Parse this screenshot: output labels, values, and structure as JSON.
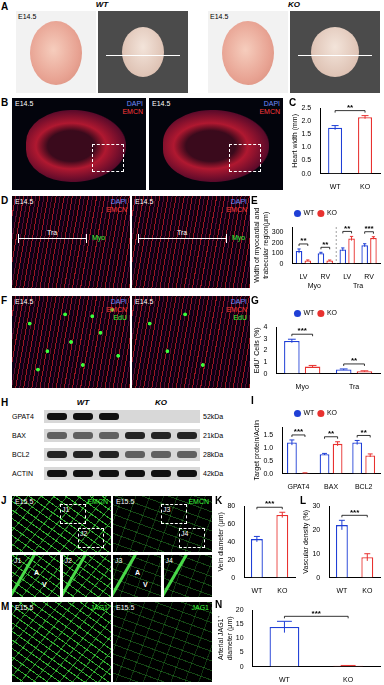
{
  "image_panels": [
    {
      "panel": "A",
      "kind": "embryo",
      "columns": [
        "WT",
        "KO"
      ],
      "stage": "E14.5"
    },
    {
      "panel": "B",
      "kind": "heart",
      "stage": "E14.5",
      "stains": [
        {
          "name": "DAPI",
          "color": "#6f8cff"
        },
        {
          "name": "EMCN",
          "color": "#ff3b3b"
        }
      ]
    },
    {
      "panel": "D",
      "kind": "zoom",
      "stage": "E14.5",
      "stains": [
        {
          "name": "DAPI",
          "color": "#6f8cff"
        },
        {
          "name": "EMCN",
          "color": "#ff3b3b"
        }
      ],
      "regions": [
        {
          "name": "Tra",
          "color": "#ffffff"
        },
        {
          "name": "Myo",
          "color": "#3cff3c"
        }
      ]
    },
    {
      "panel": "F",
      "kind": "zoom",
      "stage": "E14.5",
      "stains": [
        {
          "name": "DAPI",
          "color": "#6f8cff"
        },
        {
          "name": "EMCN",
          "color": "#ff3b3b"
        },
        {
          "name": "EdU",
          "color": "#3cff3c"
        }
      ]
    },
    {
      "panel": "J",
      "kind": "vessels",
      "stage": "E15.5",
      "stains": [
        {
          "name": "EMCN",
          "color": "#3cff3c"
        }
      ],
      "insets": [
        {
          "label": "J1",
          "marks": [
            "A",
            "V"
          ]
        },
        {
          "label": "J2"
        },
        {
          "label": "J3",
          "marks": [
            "A",
            "V"
          ]
        },
        {
          "label": "J4"
        }
      ]
    },
    {
      "panel": "M",
      "kind": "vessels",
      "stage": "E15.5",
      "stains": [
        {
          "name": "JAG1",
          "color": "#3cff3c"
        }
      ]
    }
  ],
  "blot": {
    "panel": "H",
    "columns": [
      "WT",
      "KO"
    ],
    "lanes_per_column": 3,
    "rows": [
      {
        "protein": "GPAT4",
        "size": "52kDa",
        "bands": [
          1,
          1,
          1,
          0,
          0,
          0
        ]
      },
      {
        "protein": "BAX",
        "size": "21kDa",
        "bands": [
          0.6,
          0.6,
          0.6,
          0.9,
          0.9,
          0.9
        ]
      },
      {
        "protein": "BCL2",
        "size": "28kDa",
        "bands": [
          0.9,
          0.9,
          0.9,
          0.6,
          0.6,
          0.6
        ]
      },
      {
        "protein": "ACTIN",
        "size": "42kDa",
        "bands": [
          1,
          1,
          1,
          1,
          1,
          1
        ]
      }
    ]
  },
  "chart_data": [
    {
      "panel": "C",
      "type": "bar",
      "y_label": "Heart width (mm)",
      "categories": [
        "WT",
        "KO"
      ],
      "values": [
        1.75,
        2.15
      ],
      "errors": [
        0.08,
        0.06
      ],
      "colors": [
        "#1f3fd6",
        "#e8312f"
      ],
      "ylim": [
        0,
        2.5
      ],
      "yticks": [
        {
          "value": 0,
          "label": "0.0"
        },
        0.5,
        {
          "value": 1,
          "label": "1.0"
        },
        1.5,
        {
          "value": 2,
          "label": "2.0"
        },
        2.5
      ],
      "significance": "**",
      "grid": false
    },
    {
      "panel": "E",
      "type": "bar",
      "y_label": [
        "Width of myocardial and",
        "trabecular region(μm)"
      ],
      "categories": [
        "LV",
        "RV",
        "LV",
        "RV"
      ],
      "x_groups": [
        "Myo",
        "Tra"
      ],
      "series": [
        {
          "name": "WT",
          "color": "#1f3fd6",
          "values": [
            120,
            100,
            135,
            175
          ],
          "errors": [
            20,
            8,
            15,
            15
          ]
        },
        {
          "name": "KO",
          "color": "#e8312f",
          "values": [
            30,
            30,
            240,
            245
          ],
          "errors": [
            5,
            4,
            20,
            12
          ]
        }
      ],
      "ylim": [
        0,
        350
      ],
      "yticks": [
        0,
        100,
        200,
        300
      ],
      "significance": [
        "**",
        "**",
        "**",
        "***"
      ],
      "legend": "top",
      "grid": false
    },
    {
      "panel": "G",
      "type": "bar",
      "y_label": "EdU⁺ Cells (%)",
      "categories": [
        "Myo",
        "Tra"
      ],
      "series": [
        {
          "name": "WT",
          "color": "#1f3fd6",
          "values": [
            2.8,
            0.35
          ],
          "errors": [
            0.15,
            0.05
          ]
        },
        {
          "name": "KO",
          "color": "#e8312f",
          "values": [
            0.6,
            0.2
          ],
          "errors": [
            0.1,
            0.04
          ]
        }
      ],
      "ylim": [
        0,
        4
      ],
      "yticks": [
        0,
        1,
        2,
        3,
        4
      ],
      "significance": [
        "***",
        "**"
      ],
      "legend": "top",
      "grid": false
    },
    {
      "panel": "I",
      "type": "bar",
      "y_label": "Target protein/Actin",
      "categories": [
        "GPAT4",
        "BAX",
        "BCL2"
      ],
      "series": [
        {
          "name": "WT",
          "color": "#1f3fd6",
          "values": [
            1.2,
            0.75,
            1.2
          ],
          "errors": [
            0.1,
            0.03,
            0.08
          ]
        },
        {
          "name": "KO",
          "color": "#e8312f",
          "values": [
            0.02,
            1.15,
            0.7
          ],
          "errors": [
            0.01,
            0.08,
            0.06
          ]
        }
      ],
      "ylim": [
        0,
        1.8
      ],
      "yticks": [
        {
          "value": 0,
          "label": "0.0"
        },
        0.5,
        {
          "value": 1,
          "label": "1.0"
        },
        1.5
      ],
      "significance": [
        "***",
        "**",
        "**"
      ],
      "legend": "top",
      "grid": false
    },
    {
      "panel": "K",
      "type": "bar",
      "y_label": "Vein diameter (μm)",
      "categories": [
        "WT",
        "KO"
      ],
      "values": [
        43,
        70
      ],
      "errors": [
        3,
        3
      ],
      "colors": [
        "#1f3fd6",
        "#e8312f"
      ],
      "ylim": [
        0,
        80
      ],
      "yticks": [
        0,
        20,
        40,
        60,
        80
      ],
      "significance": "***",
      "grid": false
    },
    {
      "panel": "L",
      "type": "bar",
      "y_label": "Vascular density (%)",
      "categories": [
        "WT",
        "KO"
      ],
      "values": [
        22,
        8.5
      ],
      "errors": [
        2,
        1.5
      ],
      "colors": [
        "#1f3fd6",
        "#e8312f"
      ],
      "ylim": [
        0,
        30
      ],
      "yticks": [
        0,
        10,
        20,
        30
      ],
      "significance": "***",
      "grid": false
    },
    {
      "panel": "N",
      "type": "bar",
      "y_label": [
        "Arterial JAG1⁺",
        "diameter (μm)"
      ],
      "categories": [
        "WT",
        "KO"
      ],
      "values": [
        14,
        0.3
      ],
      "errors": [
        2,
        0.1
      ],
      "colors": [
        "#1f3fd6",
        "#e8312f"
      ],
      "ylim": [
        0,
        20
      ],
      "yticks": [
        0,
        5,
        10,
        15,
        20
      ],
      "significance": "***",
      "grid": false
    }
  ]
}
